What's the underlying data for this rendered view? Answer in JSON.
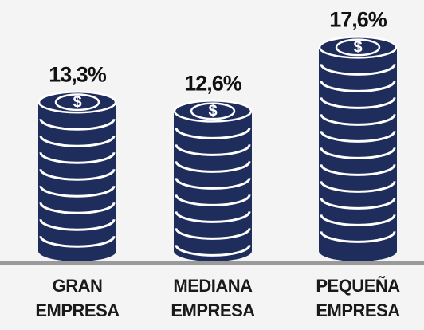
{
  "chart_data": {
    "type": "coin-stack",
    "categories": [
      [
        "GRAN",
        "EMPRESA"
      ],
      [
        "MEDIANA",
        "EMPRESA"
      ],
      [
        "PEQUEÑA",
        "EMPRESA"
      ]
    ],
    "values": [
      13.3,
      12.6,
      17.6
    ],
    "value_labels": [
      "13,3%",
      "12,6%",
      "17,6%"
    ],
    "coin_symbol": "$",
    "color": "#1f2d5c"
  }
}
